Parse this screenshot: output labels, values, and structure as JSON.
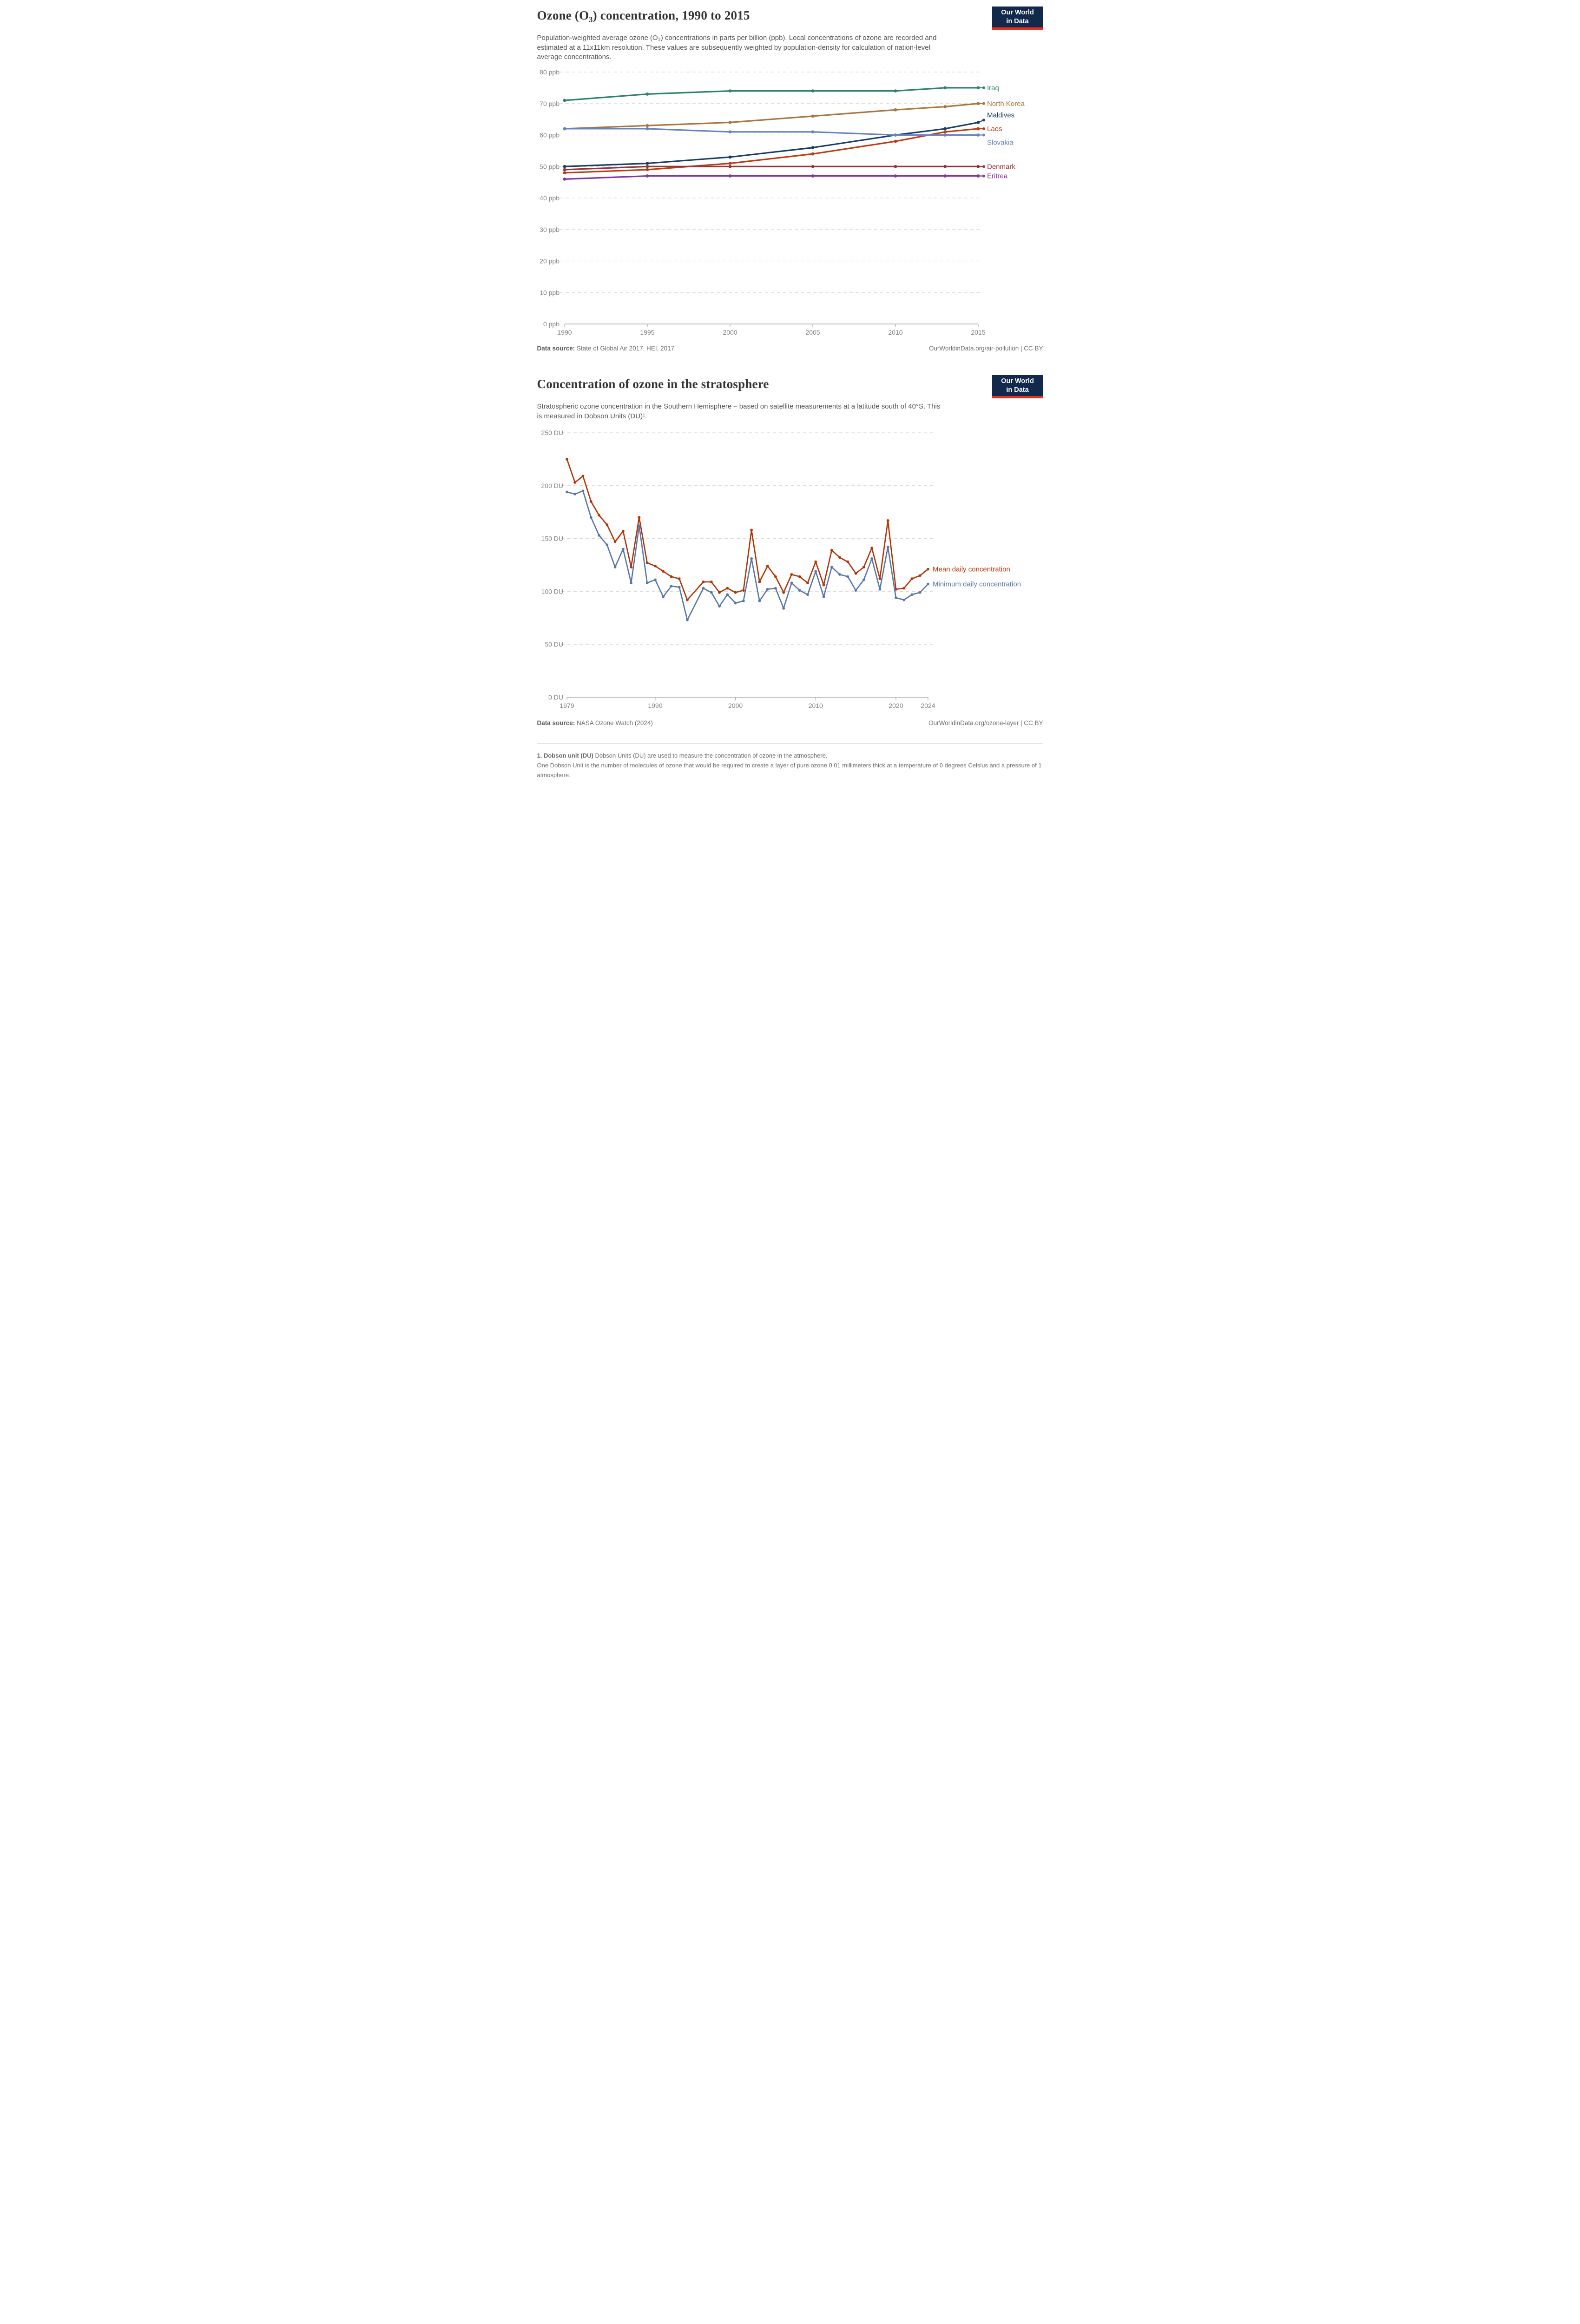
{
  "brand": {
    "logo_line1": "Our World",
    "logo_line2": "in Data"
  },
  "charts": [
    {
      "title": "Ozone (O₃) concentration, 1990 to 2015",
      "subtitle": "Population-weighted average ozone (O₃) concentrations in parts per billion (ppb). Local concentrations of ozone are recorded and estimated at a 11x11km resolution. These values are subsequently weighted by population-density for calculation of nation-level average concentrations.",
      "source_label": "Data source:",
      "source_text": "State of Global Air 2017. HEI, 2017",
      "link_text": "OurWorldinData.org/air-pollution | CC BY",
      "chart_data": {
        "type": "line",
        "x": [
          1990,
          1995,
          2000,
          2005,
          2010,
          2013,
          2015
        ],
        "xticks": [
          1990,
          1995,
          2000,
          2005,
          2010,
          2015
        ],
        "xlim": [
          1990,
          2015
        ],
        "ylim": [
          0,
          80
        ],
        "ytick_step": 10,
        "y_suffix": " ppb",
        "grid": true,
        "legend_position": "right",
        "series": [
          {
            "name": "Iraq",
            "color": "#2c8465",
            "values": [
              71,
              73,
              74,
              74,
              74,
              75,
              75
            ]
          },
          {
            "name": "North Korea",
            "color": "#aa7540",
            "values": [
              62,
              63,
              64,
              66,
              68,
              69,
              70
            ]
          },
          {
            "name": "Maldives",
            "color": "#183e68",
            "values": [
              50,
              51,
              53,
              56,
              60,
              62,
              64
            ]
          },
          {
            "name": "Laos",
            "color": "#bf3b12",
            "values": [
              48,
              49,
              51,
              54,
              58,
              61,
              62
            ]
          },
          {
            "name": "Slovakia",
            "color": "#6784c0",
            "values": [
              62,
              62,
              61,
              61,
              60,
              60,
              60
            ]
          },
          {
            "name": "Denmark",
            "color": "#99333c",
            "values": [
              49,
              50,
              50,
              50,
              50,
              50,
              50
            ]
          },
          {
            "name": "Eritrea",
            "color": "#84369f",
            "values": [
              46,
              47,
              47,
              47,
              47,
              47,
              47
            ]
          }
        ]
      }
    },
    {
      "title": "Concentration of ozone in the stratosphere",
      "subtitle": "Stratospheric ozone concentration in the Southern Hemisphere – based on satellite measurements at a latitude south of 40°S. This is measured in Dobson Units (DU)¹.",
      "source_label": "Data source:",
      "source_text": "NASA Ozone Watch (2024)",
      "link_text": "OurWorldinData.org/ozone-layer | CC BY",
      "chart_data": {
        "type": "line",
        "x": [
          1979,
          1980,
          1981,
          1982,
          1983,
          1984,
          1985,
          1986,
          1987,
          1988,
          1989,
          1990,
          1991,
          1992,
          1993,
          1994,
          1996,
          1997,
          1998,
          1999,
          2000,
          2001,
          2002,
          2003,
          2004,
          2005,
          2006,
          2007,
          2008,
          2009,
          2010,
          2011,
          2012,
          2013,
          2014,
          2015,
          2016,
          2017,
          2018,
          2019,
          2020,
          2021,
          2022,
          2023,
          2024
        ],
        "xticks": [
          1979,
          1990,
          2000,
          2010,
          2020,
          2024
        ],
        "xlim": [
          1979,
          2024
        ],
        "ylim": [
          0,
          250
        ],
        "ytick_step": 50,
        "y_suffix": " DU",
        "grid": true,
        "legend_position": "right",
        "series": [
          {
            "name": "Mean daily concentration",
            "color": "#b13507",
            "values": [
              225,
              203,
              209,
              185,
              172,
              163,
              147,
              157,
              123,
              170,
              127,
              124,
              119,
              114,
              112,
              92,
              109,
              109,
              99,
              103,
              99,
              101,
              158,
              109,
              124,
              114,
              99,
              116,
              114,
              108,
              128,
              106,
              139,
              132,
              128,
              117,
              123,
              141,
              112,
              167,
              102,
              103,
              112,
              115,
              121
            ]
          },
          {
            "name": "Minimum daily concentration",
            "color": "#5878a8",
            "values": [
              194,
              192,
              195,
              170,
              153,
              144,
              123,
              140,
              108,
              162,
              108,
              111,
              95,
              105,
              104,
              73,
              103,
              99,
              86,
              97,
              89,
              91,
              131,
              91,
              102,
              103,
              84,
              108,
              101,
              97,
              119,
              95,
              123,
              116,
              114,
              101,
              111,
              131,
              102,
              142,
              94,
              92,
              97,
              99,
              107
            ]
          }
        ]
      }
    }
  ],
  "footnote": {
    "bold": "1. Dobson unit (DU)",
    "line1": "Dobson Units (DU) are used to measure the concentration of ozone in the atmosphere.",
    "line2": "One Dobson Unit is the number of molecules of ozone that would be required to create a layer of pure ozone 0.01 millimeters thick at a temperature of 0 degrees Celsius and a pressure of 1 atmosphere."
  }
}
